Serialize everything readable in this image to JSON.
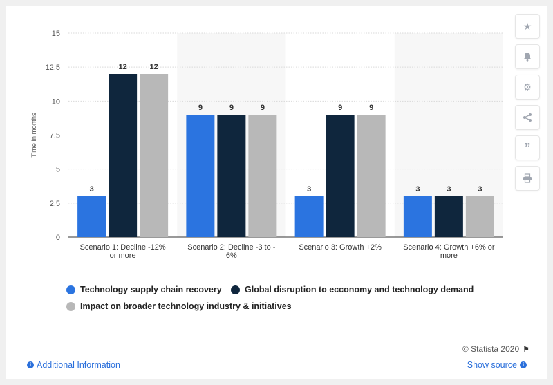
{
  "chart_data": {
    "type": "bar",
    "title": "",
    "xlabel": "",
    "ylabel": "Time in months",
    "ylim": [
      0,
      15
    ],
    "yticks": [
      "0",
      "2.5",
      "5",
      "7.5",
      "10",
      "12.5",
      "15"
    ],
    "grid": true,
    "legend_position": "bottom",
    "categories": [
      [
        "Scenario 1: Decline -12%",
        "or more"
      ],
      [
        "Scenario 2: Decline -3 to -",
        "6%"
      ],
      [
        "Scenario 3: Growth +2%"
      ],
      [
        "Scenario 4: Growth +6% or",
        "more"
      ]
    ],
    "series": [
      {
        "name": "Technology supply chain recovery",
        "color": "#2b74e0",
        "values": [
          3,
          9,
          3,
          3
        ]
      },
      {
        "name": "Global disruption to ecconomy and technology demand",
        "color": "#0f263d",
        "values": [
          12,
          9,
          9,
          3
        ]
      },
      {
        "name": "Impact on broader technology industry & initiatives",
        "color": "#b8b8b8",
        "values": [
          12,
          9,
          9,
          3
        ]
      }
    ]
  },
  "footer": {
    "copyright": "© Statista 2020",
    "additional_info": "Additional Information",
    "show_source": "Show source"
  },
  "toolbar": {
    "icons": [
      "star-icon",
      "bell-icon",
      "gear-icon",
      "share-icon",
      "quote-icon",
      "print-icon"
    ]
  }
}
